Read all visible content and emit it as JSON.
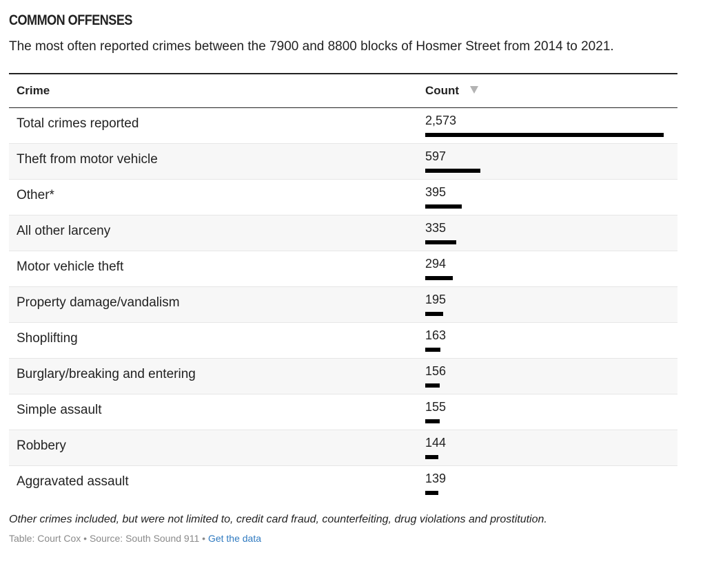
{
  "header": {
    "kicker": "COMMON OFFENSES",
    "subtitle": "The most often reported crimes between the 7900 and 8800 blocks of Hosmer Street from 2014 to 2021."
  },
  "table": {
    "columns": [
      "Crime",
      "Count"
    ],
    "sort_icon": "sort-descending-triangle-icon"
  },
  "chart_data": {
    "type": "table",
    "title": "COMMON OFFENSES",
    "subtitle": "The most often reported crimes between the 7900 and 8800 blocks of Hosmer Street from 2014 to 2021.",
    "columns": [
      "Crime",
      "Count"
    ],
    "rows": [
      {
        "crime": "Total crimes reported",
        "count": 2573,
        "count_label": "2,573"
      },
      {
        "crime": "Theft from motor vehicle",
        "count": 597,
        "count_label": "597"
      },
      {
        "crime": "Other*",
        "count": 395,
        "count_label": "395"
      },
      {
        "crime": "All other larceny",
        "count": 335,
        "count_label": "335"
      },
      {
        "crime": "Motor vehicle theft",
        "count": 294,
        "count_label": "294"
      },
      {
        "crime": "Property damage/vandalism",
        "count": 195,
        "count_label": "195"
      },
      {
        "crime": "Shoplifting",
        "count": 163,
        "count_label": "163"
      },
      {
        "crime": "Burglary/breaking and entering",
        "count": 156,
        "count_label": "156"
      },
      {
        "crime": "Simple assault",
        "count": 155,
        "count_label": "155"
      },
      {
        "crime": "Robbery",
        "count": 144,
        "count_label": "144"
      },
      {
        "crime": "Aggravated assault",
        "count": 139,
        "count_label": "139"
      }
    ],
    "bar_color": "#000000"
  },
  "footer": {
    "note": "Other crimes included, but were not limited to, credit card fraud, counterfeiting, drug violations and prostitution.",
    "credit_prefix": "Table: Court Cox • Source: South Sound 911 • ",
    "data_link": "Get the data"
  }
}
